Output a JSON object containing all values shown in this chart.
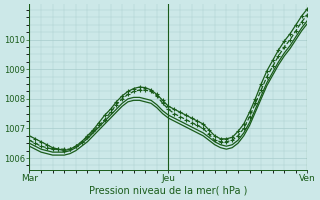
{
  "bg_color": "#cce8e8",
  "grid_color": "#a8cccc",
  "line_color": "#1a5c1a",
  "title": "Pression niveau de la mer( hPa )",
  "xtick_labels": [
    "Mar",
    "Jeu",
    "Ven"
  ],
  "ylim": [
    1005.6,
    1011.2
  ],
  "yticks": [
    1006,
    1007,
    1008,
    1009,
    1010
  ],
  "n_points": 49,
  "xlim": [
    0,
    48
  ],
  "jeu_x": 24,
  "ven_x": 48,
  "series": [
    {
      "y": [
        1006.6,
        1006.5,
        1006.4,
        1006.35,
        1006.3,
        1006.3,
        1006.3,
        1006.3,
        1006.4,
        1006.55,
        1006.7,
        1006.9,
        1007.1,
        1007.3,
        1007.55,
        1007.8,
        1008.0,
        1008.15,
        1008.25,
        1008.3,
        1008.3,
        1008.25,
        1008.1,
        1007.85,
        1007.65,
        1007.5,
        1007.4,
        1007.3,
        1007.2,
        1007.1,
        1007.0,
        1006.8,
        1006.6,
        1006.55,
        1006.55,
        1006.6,
        1006.75,
        1007.0,
        1007.4,
        1007.85,
        1008.3,
        1008.75,
        1009.1,
        1009.45,
        1009.75,
        1010.0,
        1010.3,
        1010.6,
        1010.85
      ],
      "marker": true,
      "linestyle": "dotted"
    },
    {
      "y": [
        1006.5,
        1006.4,
        1006.3,
        1006.25,
        1006.2,
        1006.2,
        1006.2,
        1006.25,
        1006.35,
        1006.5,
        1006.65,
        1006.85,
        1007.05,
        1007.25,
        1007.45,
        1007.65,
        1007.85,
        1008.0,
        1008.05,
        1008.05,
        1008.0,
        1007.95,
        1007.8,
        1007.6,
        1007.45,
        1007.35,
        1007.25,
        1007.15,
        1007.05,
        1006.95,
        1006.85,
        1006.7,
        1006.55,
        1006.45,
        1006.4,
        1006.45,
        1006.6,
        1006.85,
        1007.2,
        1007.65,
        1008.1,
        1008.55,
        1008.9,
        1009.25,
        1009.55,
        1009.8,
        1010.1,
        1010.4,
        1010.65
      ],
      "marker": false,
      "linestyle": "solid"
    },
    {
      "y": [
        1006.4,
        1006.3,
        1006.2,
        1006.15,
        1006.1,
        1006.1,
        1006.1,
        1006.15,
        1006.25,
        1006.4,
        1006.55,
        1006.75,
        1006.95,
        1007.15,
        1007.35,
        1007.55,
        1007.75,
        1007.9,
        1007.95,
        1007.95,
        1007.9,
        1007.85,
        1007.7,
        1007.5,
        1007.35,
        1007.25,
        1007.15,
        1007.05,
        1006.95,
        1006.85,
        1006.75,
        1006.6,
        1006.45,
        1006.35,
        1006.3,
        1006.35,
        1006.5,
        1006.75,
        1007.1,
        1007.55,
        1008.0,
        1008.45,
        1008.8,
        1009.15,
        1009.45,
        1009.7,
        1010.0,
        1010.3,
        1010.55
      ],
      "marker": false,
      "linestyle": "solid"
    },
    {
      "y": [
        1006.75,
        1006.65,
        1006.55,
        1006.45,
        1006.35,
        1006.3,
        1006.25,
        1006.3,
        1006.4,
        1006.55,
        1006.75,
        1006.95,
        1007.2,
        1007.45,
        1007.65,
        1007.9,
        1008.1,
        1008.25,
        1008.35,
        1008.4,
        1008.38,
        1008.3,
        1008.15,
        1007.95,
        1007.75,
        1007.65,
        1007.55,
        1007.45,
        1007.35,
        1007.25,
        1007.15,
        1006.95,
        1006.75,
        1006.65,
        1006.65,
        1006.7,
        1006.9,
        1007.15,
        1007.55,
        1008.0,
        1008.5,
        1008.95,
        1009.3,
        1009.65,
        1009.95,
        1010.2,
        1010.5,
        1010.8,
        1011.05
      ],
      "marker": true,
      "linestyle": "solid"
    }
  ]
}
